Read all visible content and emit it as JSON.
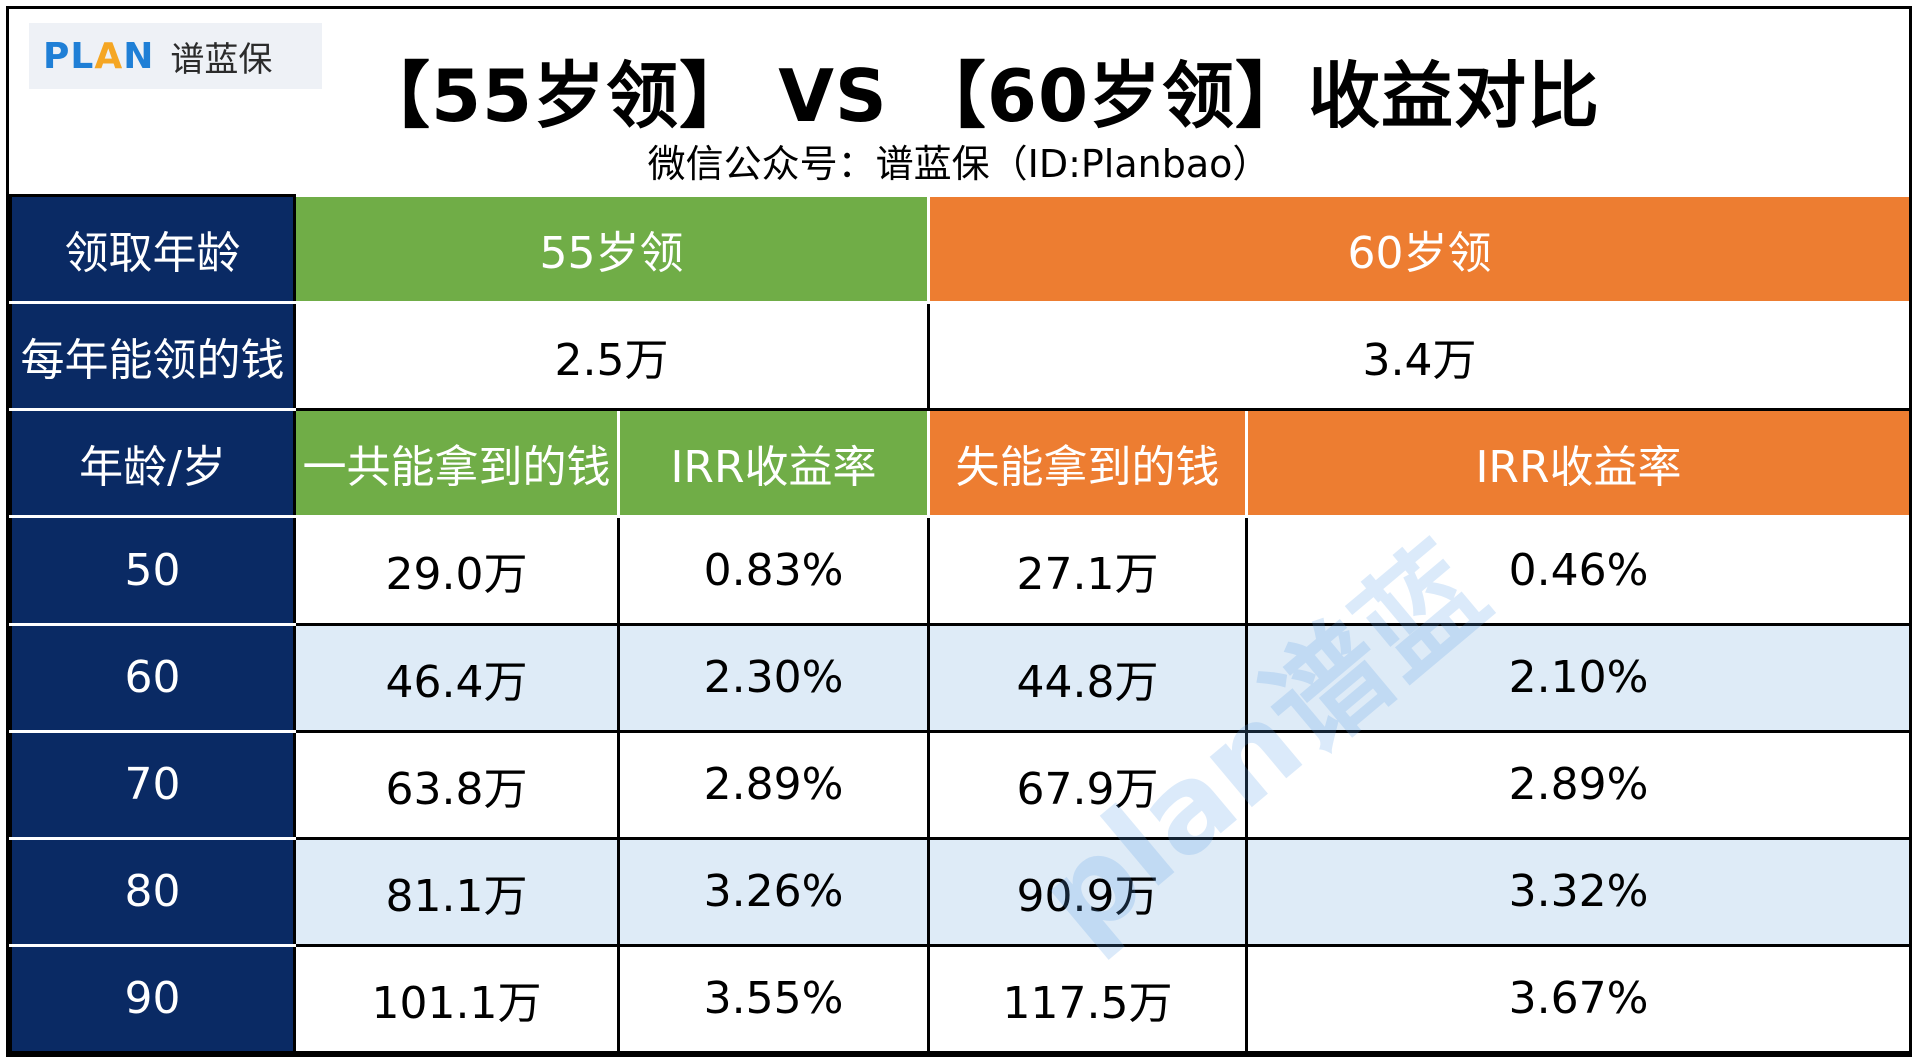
{
  "logo": {
    "en_pre": "PL",
    "en_a": "A",
    "en_post": "N",
    "cn": "谱蓝保"
  },
  "title": "【55岁领】 VS 【60岁领】收益对比",
  "subtitle": "微信公众号：谱蓝保（ID:Planbao）",
  "table": {
    "row_age_label": "领取年龄",
    "option_a": "55岁领",
    "option_b": "60岁领",
    "row_annual_label": "每年能领的钱",
    "annual_a": "2.5万",
    "annual_b": "3.4万",
    "col_age_label": "年龄/岁",
    "col_total_a": "一共能拿到的钱",
    "col_irr_a": "IRR收益率",
    "col_total_b": "失能拿到的钱",
    "col_irr_b": "IRR收益率",
    "rows": [
      {
        "age": "50",
        "total_a": "29.0万",
        "irr_a": "0.83%",
        "total_b": "27.1万",
        "irr_b": "0.46%"
      },
      {
        "age": "60",
        "total_a": "46.4万",
        "irr_a": "2.30%",
        "total_b": "44.8万",
        "irr_b": "2.10%"
      },
      {
        "age": "70",
        "total_a": "63.8万",
        "irr_a": "2.89%",
        "total_b": "67.9万",
        "irr_b": "2.89%"
      },
      {
        "age": "80",
        "total_a": "81.1万",
        "irr_a": "3.26%",
        "total_b": "90.9万",
        "irr_b": "3.32%"
      },
      {
        "age": "90",
        "total_a": "101.1万",
        "irr_a": "3.55%",
        "total_b": "117.5万",
        "irr_b": "3.67%"
      }
    ]
  },
  "watermark": "plan谱蓝",
  "colors": {
    "navy": "#0a2a64",
    "green": "#70ad47",
    "orange": "#ed7d31",
    "light_blue": "#deebf7",
    "logo_blue": "#1f7fd6",
    "logo_orange": "#f5a623"
  }
}
